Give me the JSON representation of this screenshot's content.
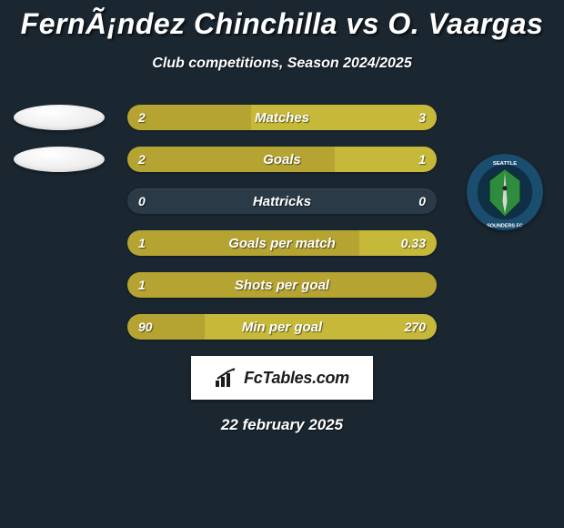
{
  "background_color": "#1a2630",
  "title": "FernÃ¡ndez Chinchilla vs O. Vaargas",
  "subtitle": "Club competitions, Season 2024/2025",
  "date": "22 february 2025",
  "footer_brand": "FcTables.com",
  "left_badges": [
    {
      "type": "oval",
      "color": "#f5f5f5"
    },
    {
      "type": "oval",
      "color": "#f5f5f5"
    }
  ],
  "right_badge": {
    "type": "crest",
    "name": "Seattle Sounders FC",
    "colors": {
      "ring": "#1b4d6f",
      "field": "#2f8b3e",
      "needle": "#d6d6d6",
      "text": "#ffffff"
    }
  },
  "bars": {
    "left_color": "#b5a432",
    "right_color": "#c6b838",
    "track_color": "#2a3b47",
    "text_color": "#ffffff",
    "rows": [
      {
        "label": "Matches",
        "left_val": "2",
        "right_val": "3",
        "left_pct": 40,
        "right_pct": 60
      },
      {
        "label": "Goals",
        "left_val": "2",
        "right_val": "1",
        "left_pct": 67,
        "right_pct": 33
      },
      {
        "label": "Hattricks",
        "left_val": "0",
        "right_val": "0",
        "left_pct": 0,
        "right_pct": 0
      },
      {
        "label": "Goals per match",
        "left_val": "1",
        "right_val": "0.33",
        "left_pct": 75,
        "right_pct": 25
      },
      {
        "label": "Shots per goal",
        "left_val": "1",
        "right_val": "",
        "left_pct": 100,
        "right_pct": 0
      },
      {
        "label": "Min per goal",
        "left_val": "90",
        "right_val": "270",
        "left_pct": 25,
        "right_pct": 75
      }
    ]
  }
}
